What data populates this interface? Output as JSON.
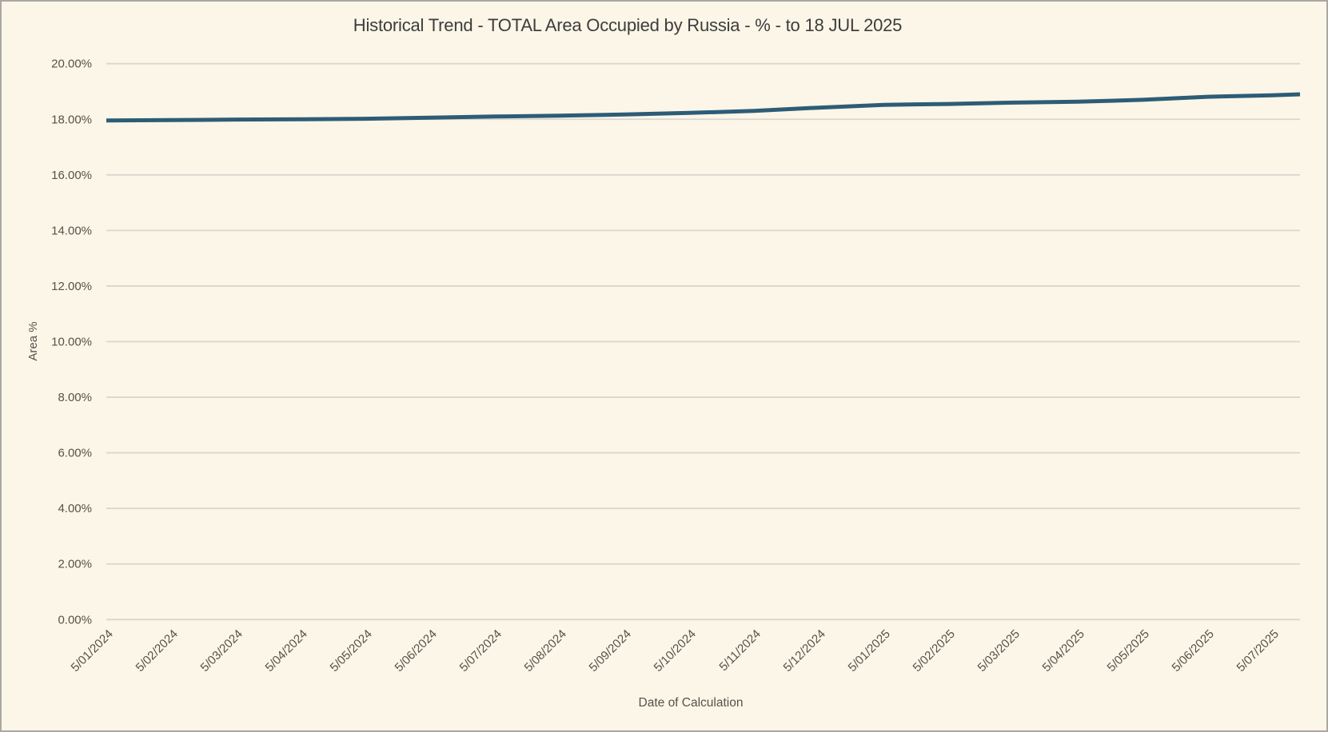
{
  "colors": {
    "background": "#fbf6e7",
    "frame_border": "#a9a8a2",
    "gridline": "#d9d6d0",
    "tick_text": "#55524c",
    "title_text": "#3d3d3d",
    "series_line": "#2d5c77"
  },
  "chart_data": {
    "type": "line",
    "title": "Historical Trend - TOTAL Area Occupied by Russia - % - to 18 JUL 2025",
    "xlabel": "Date of Calculation",
    "ylabel": "Area %",
    "ylim": [
      0,
      20
    ],
    "grid": true,
    "legend": "none",
    "line_color": "#2d5c77",
    "y_ticks": [
      {
        "value": 0,
        "label": "0.00%"
      },
      {
        "value": 2,
        "label": "2.00%"
      },
      {
        "value": 4,
        "label": "4.00%"
      },
      {
        "value": 6,
        "label": "6.00%"
      },
      {
        "value": 8,
        "label": "8.00%"
      },
      {
        "value": 10,
        "label": "10.00%"
      },
      {
        "value": 12,
        "label": "12.00%"
      },
      {
        "value": 14,
        "label": "14.00%"
      },
      {
        "value": 16,
        "label": "16.00%"
      },
      {
        "value": 18,
        "label": "18.00%"
      },
      {
        "value": 20,
        "label": "20.00%"
      }
    ],
    "x_tick_labels": [
      "5/01/2024",
      "5/02/2024",
      "5/03/2024",
      "5/04/2024",
      "5/05/2024",
      "5/06/2024",
      "5/07/2024",
      "5/08/2024",
      "5/09/2024",
      "5/10/2024",
      "5/11/2024",
      "5/12/2024",
      "5/01/2025",
      "5/02/2025",
      "5/03/2025",
      "5/04/2025",
      "5/05/2025",
      "5/06/2025",
      "5/07/2025"
    ],
    "series": [
      {
        "name": "TOTAL Area Occupied by Russia (%)",
        "points": [
          {
            "date": "5/01/2024",
            "value": 17.96
          },
          {
            "date": "5/02/2024",
            "value": 17.97
          },
          {
            "date": "5/03/2024",
            "value": 17.99
          },
          {
            "date": "5/04/2024",
            "value": 18.0
          },
          {
            "date": "5/05/2024",
            "value": 18.02
          },
          {
            "date": "5/06/2024",
            "value": 18.06
          },
          {
            "date": "5/07/2024",
            "value": 18.1
          },
          {
            "date": "5/08/2024",
            "value": 18.13
          },
          {
            "date": "5/09/2024",
            "value": 18.17
          },
          {
            "date": "5/10/2024",
            "value": 18.23
          },
          {
            "date": "5/11/2024",
            "value": 18.3
          },
          {
            "date": "5/12/2024",
            "value": 18.42
          },
          {
            "date": "5/01/2025",
            "value": 18.52
          },
          {
            "date": "5/02/2025",
            "value": 18.55
          },
          {
            "date": "5/03/2025",
            "value": 18.6
          },
          {
            "date": "5/04/2025",
            "value": 18.63
          },
          {
            "date": "5/05/2025",
            "value": 18.7
          },
          {
            "date": "5/06/2025",
            "value": 18.81
          },
          {
            "date": "5/07/2025",
            "value": 18.86
          },
          {
            "date": "7/18/2025",
            "value": 18.9
          }
        ]
      }
    ]
  }
}
